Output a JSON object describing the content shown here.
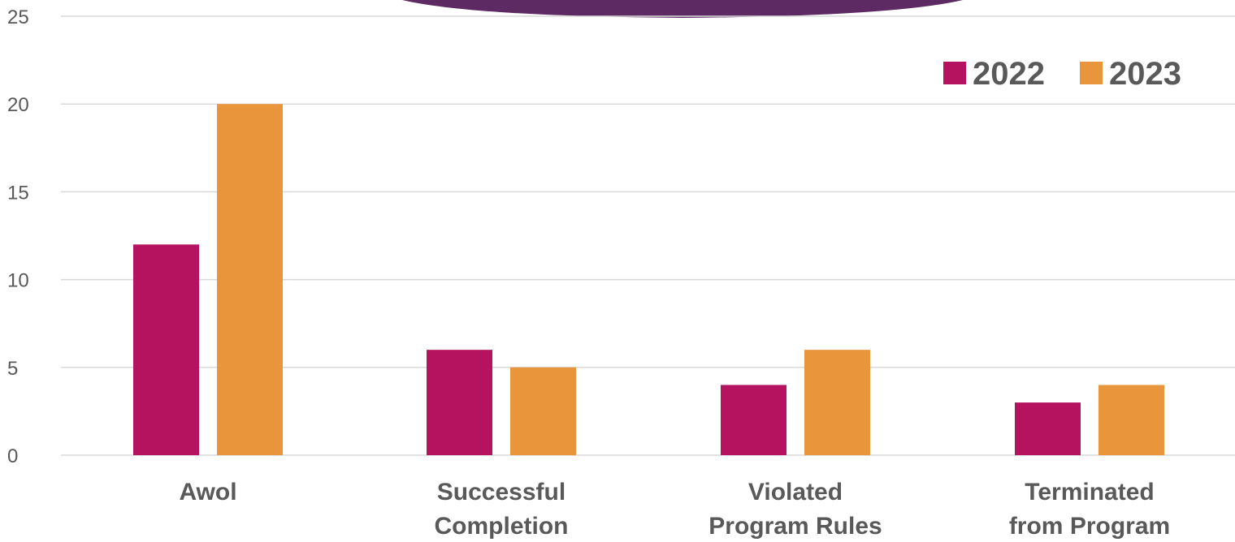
{
  "chart_data": {
    "type": "bar",
    "title": "",
    "xlabel": "",
    "ylabel": "",
    "categories": [
      [
        "Awol"
      ],
      [
        "Successful",
        "Completion"
      ],
      [
        "Violated",
        "Program Rules"
      ],
      [
        "Terminated",
        "from Program"
      ]
    ],
    "series": [
      {
        "name": "2022",
        "color": "#b5135f",
        "values": [
          12,
          6,
          4,
          3
        ]
      },
      {
        "name": "2023",
        "color": "#e8953c",
        "values": [
          20,
          5,
          6,
          4
        ]
      }
    ],
    "ylim": [
      0,
      25
    ],
    "yticks": [
      0,
      5,
      10,
      15,
      20,
      25
    ],
    "grid": true,
    "legend_position": "top-right"
  },
  "decoration": {
    "banner_color": "#5e2a63"
  }
}
